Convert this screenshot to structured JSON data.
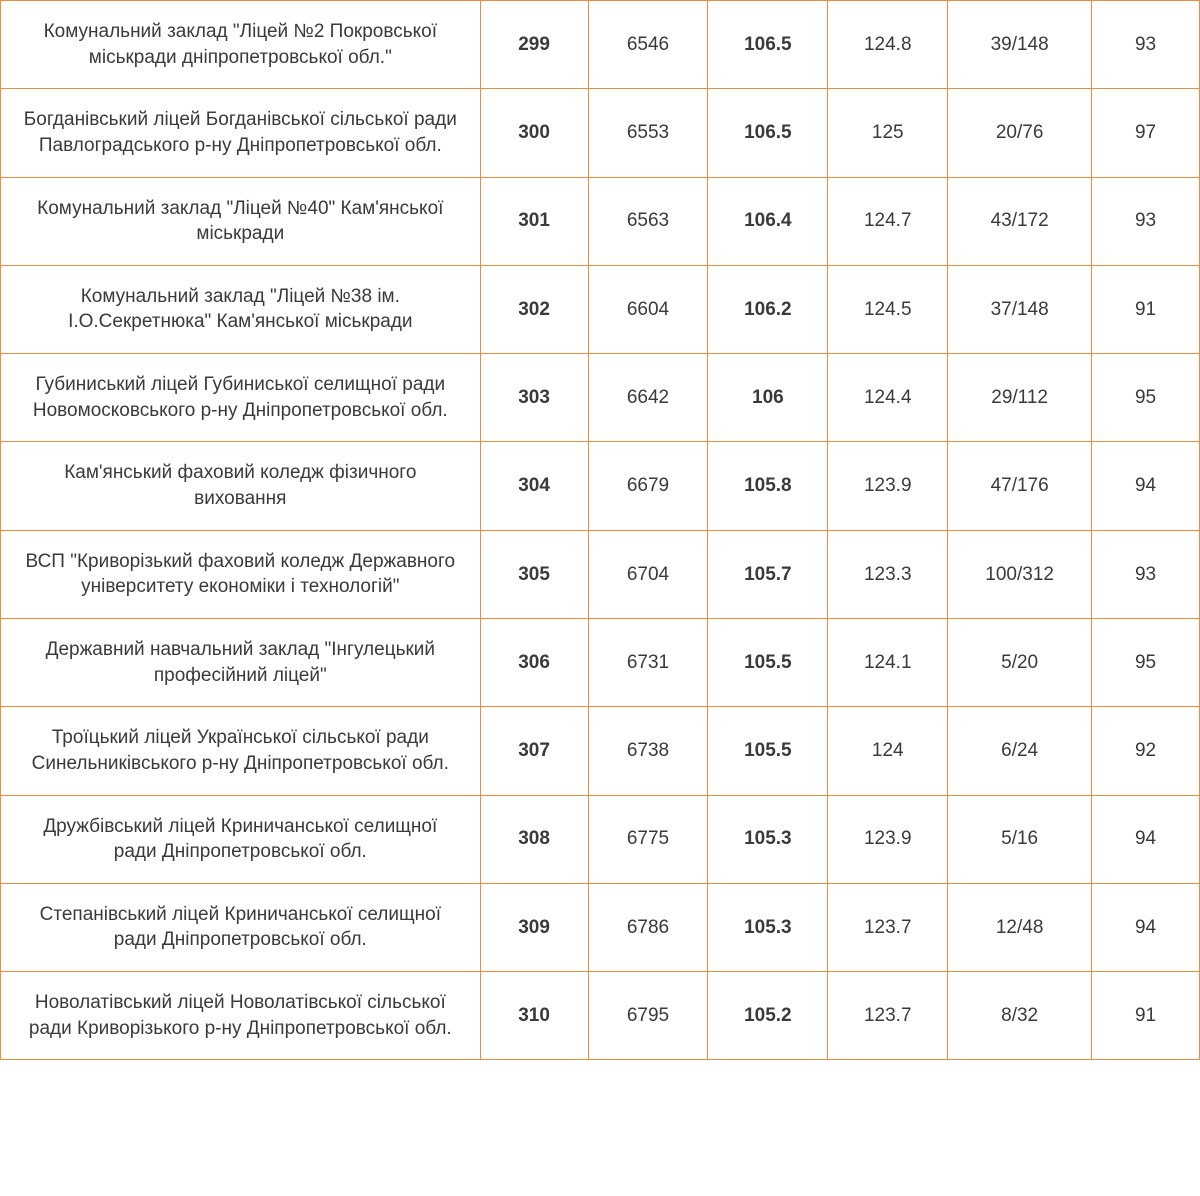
{
  "table": {
    "type": "table",
    "border_color": "#f08c3f",
    "background_color": "#ffffff",
    "text_color": "#3a3a3a",
    "font_size_pt": 14,
    "column_widths_pct": [
      40,
      9,
      10,
      10,
      10,
      12,
      9
    ],
    "columns_bold": [
      false,
      true,
      false,
      true,
      false,
      false,
      false
    ],
    "columns_align": [
      "center",
      "center",
      "center",
      "center",
      "center",
      "center",
      "center"
    ],
    "rows": [
      {
        "name": "Комунальний заклад \"Ліцей №2 Покровської міськради дніпропетровської обл.\"",
        "rank": "299",
        "num1": "6546",
        "score": "106.5",
        "num2": "124.8",
        "ratio": "39/148",
        "num3": "93"
      },
      {
        "name": "Богданівський ліцей Богданівської сільської ради Павлоградського р-ну Дніпропетровської обл.",
        "rank": "300",
        "num1": "6553",
        "score": "106.5",
        "num2": "125",
        "ratio": "20/76",
        "num3": "97"
      },
      {
        "name": "Комунальний заклад \"Ліцей №40\" Кам'янської міськради",
        "rank": "301",
        "num1": "6563",
        "score": "106.4",
        "num2": "124.7",
        "ratio": "43/172",
        "num3": "93"
      },
      {
        "name": "Комунальний заклад \"Ліцей №38 ім. І.О.Секретнюка\" Кам'янської міськради",
        "rank": "302",
        "num1": "6604",
        "score": "106.2",
        "num2": "124.5",
        "ratio": "37/148",
        "num3": "91"
      },
      {
        "name": "Губиниський ліцей Губиниської селищної ради Новомосковського р-ну Дніпропетровської обл.",
        "rank": "303",
        "num1": "6642",
        "score": "106",
        "num2": "124.4",
        "ratio": "29/112",
        "num3": "95"
      },
      {
        "name": "Кам'янський фаховий коледж фізичного виховання",
        "rank": "304",
        "num1": "6679",
        "score": "105.8",
        "num2": "123.9",
        "ratio": "47/176",
        "num3": "94"
      },
      {
        "name": "ВСП \"Криворізький фаховий коледж Державного університету економіки і технологій\"",
        "rank": "305",
        "num1": "6704",
        "score": "105.7",
        "num2": "123.3",
        "ratio": "100/312",
        "num3": "93"
      },
      {
        "name": "Державний навчальний заклад \"Інгулецький професійний ліцей\"",
        "rank": "306",
        "num1": "6731",
        "score": "105.5",
        "num2": "124.1",
        "ratio": "5/20",
        "num3": "95"
      },
      {
        "name": "Троїцький ліцей Української сільської ради Синельниківського р-ну Дніпропетровської обл.",
        "rank": "307",
        "num1": "6738",
        "score": "105.5",
        "num2": "124",
        "ratio": "6/24",
        "num3": "92"
      },
      {
        "name": "Дружбівський ліцей Криничанської селищної ради Дніпропетровської обл.",
        "rank": "308",
        "num1": "6775",
        "score": "105.3",
        "num2": "123.9",
        "ratio": "5/16",
        "num3": "94"
      },
      {
        "name": "Степанівський ліцей Криничанської селищної ради Дніпропетровської обл.",
        "rank": "309",
        "num1": "6786",
        "score": "105.3",
        "num2": "123.7",
        "ratio": "12/48",
        "num3": "94"
      },
      {
        "name": "Новолатівський ліцей Новолатівської сільської ради Криворізького р-ну Дніпропетровської обл.",
        "rank": "310",
        "num1": "6795",
        "score": "105.2",
        "num2": "123.7",
        "ratio": "8/32",
        "num3": "91"
      }
    ]
  }
}
